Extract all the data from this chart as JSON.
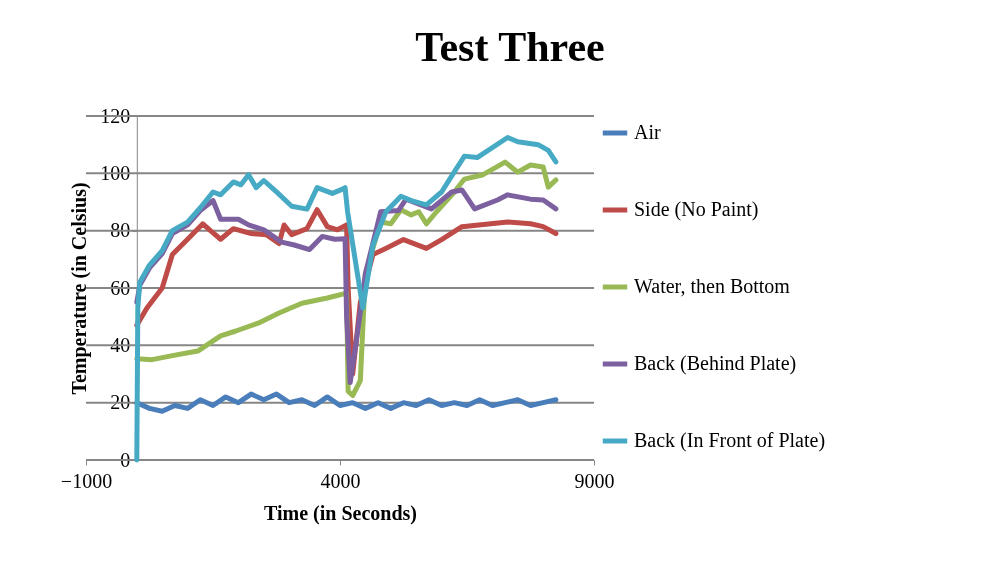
{
  "chart_data": {
    "type": "line",
    "title": "Test Three",
    "xlabel": "Time (in Seconds)",
    "ylabel": "Temperature (in Celsius)",
    "xlim": [
      -1000,
      9000
    ],
    "xticks": [
      -1000,
      4000,
      9000
    ],
    "ylim": [
      0,
      120
    ],
    "yticks": [
      0,
      20,
      40,
      60,
      80,
      100,
      120
    ],
    "grid": "y",
    "legend": "right",
    "marker": "none",
    "line_style": "solid",
    "series": [
      {
        "name": "Air",
        "color": "#4a7ebb",
        "x": [
          0,
          250,
          500,
          750,
          1000,
          1250,
          1500,
          1750,
          2000,
          2250,
          2500,
          2750,
          3000,
          3250,
          3500,
          3750,
          4000,
          4250,
          4500,
          4750,
          5000,
          5250,
          5500,
          5750,
          6000,
          6250,
          6500,
          6750,
          7000,
          7250,
          7500,
          7750,
          8000,
          8250
        ],
        "values": [
          20,
          18,
          17,
          19,
          18,
          21,
          19,
          22,
          20,
          23,
          21,
          23,
          20,
          21,
          19,
          22,
          19,
          20,
          18,
          20,
          18,
          20,
          19,
          21,
          19,
          20,
          19,
          21,
          19,
          20,
          21,
          19,
          20,
          21
        ]
      },
      {
        "name": "Side (No Paint)",
        "color": "#be4b48",
        "x": [
          0,
          200,
          500,
          700,
          1000,
          1300,
          1450,
          1650,
          1900,
          2250,
          2550,
          2800,
          2900,
          3050,
          3350,
          3550,
          3750,
          3950,
          4130,
          4160,
          4250,
          4400,
          4650,
          4900,
          5250,
          5700,
          6000,
          6400,
          7300,
          7750,
          8000,
          8250
        ],
        "values": [
          47,
          53,
          60,
          71.7,
          77,
          82.4,
          80,
          77,
          80.7,
          79,
          78.6,
          75.5,
          82,
          78.6,
          80.7,
          87.3,
          81.4,
          80.3,
          82,
          60,
          30,
          55,
          71.7,
          73.8,
          76.9,
          73.8,
          76.9,
          81.4,
          83,
          82.4,
          81.4,
          79
        ]
      },
      {
        "name": "Water, then Bottom",
        "color": "#98b954",
        "x": [
          0,
          300,
          700,
          1200,
          1650,
          1950,
          2400,
          2800,
          3250,
          3750,
          4130,
          4160,
          4250,
          4400,
          4500,
          4800,
          5000,
          5200,
          5400,
          5550,
          5700,
          5900,
          6250,
          6450,
          6800,
          7250,
          7500,
          7750,
          8000,
          8100,
          8250
        ],
        "values": [
          35.3,
          35,
          36.4,
          38,
          43.3,
          45,
          47.8,
          51.3,
          54.7,
          56.5,
          58.2,
          24,
          22.5,
          27.7,
          65,
          83,
          82.4,
          87.3,
          85.5,
          86.6,
          82.4,
          86.6,
          93.5,
          98,
          99.4,
          103.9,
          100.4,
          102.9,
          102.2,
          95.2,
          97.7
        ]
      },
      {
        "name": "Back (Behind Plate)",
        "color": "#7d60a0",
        "x": [
          0,
          60,
          250,
          500,
          700,
          1000,
          1250,
          1500,
          1650,
          1800,
          2000,
          2200,
          2500,
          2850,
          3100,
          3400,
          3650,
          3900,
          4100,
          4130,
          4200,
          4350,
          4500,
          4800,
          5150,
          5300,
          5800,
          6200,
          6400,
          6650,
          7100,
          7300,
          7750,
          8000,
          8250
        ],
        "values": [
          55,
          61,
          67,
          72,
          79,
          82,
          87,
          90.5,
          84,
          84,
          84,
          82,
          80.3,
          76,
          75,
          73.4,
          78,
          77,
          77.2,
          50,
          27,
          45,
          65,
          86.6,
          87,
          91,
          87.6,
          93.5,
          94.2,
          87.6,
          90.7,
          92.5,
          91,
          90.7,
          87.6
        ]
      },
      {
        "name": "Back (In Front of Plate)",
        "color": "#46aac5",
        "x": [
          0,
          20,
          60,
          250,
          500,
          700,
          1000,
          1250,
          1500,
          1650,
          1900,
          2050,
          2200,
          2350,
          2500,
          2750,
          3050,
          3350,
          3550,
          3850,
          4050,
          4100,
          4150,
          4450,
          4650,
          4900,
          5200,
          5400,
          5700,
          6000,
          6250,
          6450,
          6700,
          7300,
          7500,
          7900,
          8100,
          8250
        ],
        "values": [
          0,
          53,
          62,
          68,
          73,
          80,
          83,
          88,
          93.5,
          92.5,
          97,
          96,
          99.5,
          95,
          97.5,
          93.5,
          88.5,
          87.5,
          95,
          93,
          94.5,
          95,
          86.5,
          53,
          75,
          86.5,
          92,
          90.5,
          89,
          93.5,
          100.5,
          106,
          105.5,
          112.5,
          111,
          110,
          108,
          104
        ]
      }
    ]
  }
}
